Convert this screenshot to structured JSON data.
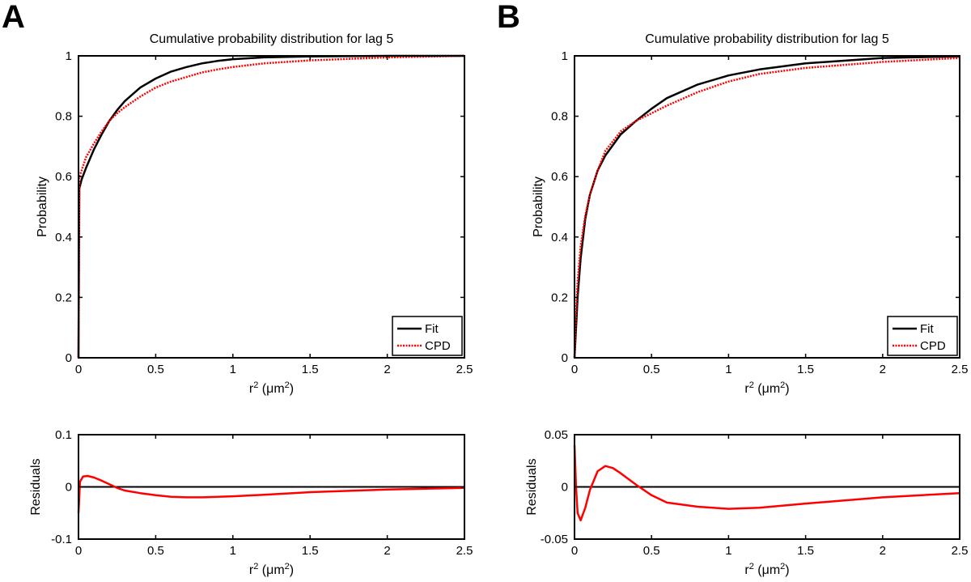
{
  "figure": {
    "panels": [
      {
        "letter": "A"
      },
      {
        "letter": "B"
      }
    ]
  },
  "colors": {
    "fit": "#000000",
    "cpd": "#ff0000",
    "axis": "#000000",
    "residual": "#ff0000"
  },
  "chart_data": [
    {
      "id": "A-cpd",
      "type": "line",
      "title": "Cumulative probability distribution for lag 5",
      "xlabel": "r^2 (μm^2)",
      "xlabel_parts": {
        "base": "r",
        "sup1": "2",
        "mid": " (μm",
        "sup2": "2",
        "end": ")"
      },
      "ylabel": "Probability",
      "xlim": [
        0,
        2.5
      ],
      "ylim": [
        0,
        1
      ],
      "xticks": [
        0,
        0.5,
        1,
        1.5,
        2,
        2.5
      ],
      "xtick_labels": [
        "0",
        "0.5",
        "1",
        "1.5",
        "2",
        "2.5"
      ],
      "yticks": [
        0,
        0.2,
        0.4,
        0.6,
        0.8,
        1
      ],
      "ytick_labels": [
        "0",
        "0.2",
        "0.4",
        "0.6",
        "0.8",
        "1"
      ],
      "legend": {
        "position": "bottom-right",
        "entries": [
          "Fit",
          "CPD"
        ]
      },
      "series": [
        {
          "name": "Fit",
          "style": "solid",
          "x": [
            0,
            0.005,
            0.02,
            0.05,
            0.1,
            0.15,
            0.2,
            0.25,
            0.3,
            0.4,
            0.5,
            0.6,
            0.7,
            0.8,
            0.9,
            1.0,
            1.2,
            1.5,
            2.0,
            2.5
          ],
          "y": [
            0,
            0.56,
            0.59,
            0.63,
            0.69,
            0.74,
            0.785,
            0.82,
            0.85,
            0.895,
            0.925,
            0.948,
            0.963,
            0.975,
            0.983,
            0.989,
            0.995,
            0.998,
            1.0,
            1.0
          ]
        },
        {
          "name": "CPD",
          "style": "dotted",
          "x": [
            0,
            0.005,
            0.02,
            0.05,
            0.1,
            0.15,
            0.2,
            0.25,
            0.3,
            0.4,
            0.5,
            0.6,
            0.7,
            0.8,
            0.9,
            1.0,
            1.2,
            1.5,
            2.0,
            2.5
          ],
          "y": [
            0,
            0.6,
            0.62,
            0.665,
            0.71,
            0.75,
            0.785,
            0.81,
            0.83,
            0.865,
            0.895,
            0.915,
            0.93,
            0.945,
            0.955,
            0.963,
            0.975,
            0.985,
            0.995,
            1.0
          ]
        }
      ]
    },
    {
      "id": "A-res",
      "type": "line",
      "title": "",
      "xlabel": "r^2 (μm^2)",
      "xlabel_parts": {
        "base": "r",
        "sup1": "2",
        "mid": " (μm",
        "sup2": "2",
        "end": ")"
      },
      "ylabel": "Residuals",
      "xlim": [
        0,
        2.5
      ],
      "ylim": [
        -0.1,
        0.1
      ],
      "xticks": [
        0,
        0.5,
        1,
        1.5,
        2,
        2.5
      ],
      "xtick_labels": [
        "0",
        "0.5",
        "1",
        "1.5",
        "2",
        "2.5"
      ],
      "yticks": [
        -0.1,
        0,
        0.1
      ],
      "ytick_labels": [
        "-0.1",
        "0",
        "0.1"
      ],
      "zero_line": true,
      "series": [
        {
          "name": "Residuals",
          "style": "solid",
          "x": [
            0,
            0.01,
            0.03,
            0.06,
            0.1,
            0.15,
            0.2,
            0.25,
            0.3,
            0.4,
            0.5,
            0.6,
            0.7,
            0.8,
            1.0,
            1.2,
            1.5,
            2.0,
            2.5
          ],
          "y": [
            -0.05,
            0.01,
            0.02,
            0.021,
            0.018,
            0.012,
            0.005,
            -0.002,
            -0.007,
            -0.012,
            -0.016,
            -0.019,
            -0.02,
            -0.02,
            -0.018,
            -0.015,
            -0.01,
            -0.005,
            -0.002
          ]
        }
      ]
    },
    {
      "id": "B-cpd",
      "type": "line",
      "title": "Cumulative probability distribution for lag 5",
      "xlabel": "r^2 (μm^2)",
      "xlabel_parts": {
        "base": "r",
        "sup1": "2",
        "mid": " (μm",
        "sup2": "2",
        "end": ")"
      },
      "ylabel": "Probability",
      "xlim": [
        0,
        2.5
      ],
      "ylim": [
        0,
        1
      ],
      "xticks": [
        0,
        0.5,
        1,
        1.5,
        2,
        2.5
      ],
      "xtick_labels": [
        "0",
        "0.5",
        "1",
        "1.5",
        "2",
        "2.5"
      ],
      "yticks": [
        0,
        0.2,
        0.4,
        0.6,
        0.8,
        1
      ],
      "ytick_labels": [
        "0",
        "0.2",
        "0.4",
        "0.6",
        "0.8",
        "1"
      ],
      "legend": {
        "position": "bottom-right",
        "entries": [
          "Fit",
          "CPD"
        ]
      },
      "series": [
        {
          "name": "Fit",
          "style": "solid",
          "x": [
            0,
            0.01,
            0.02,
            0.04,
            0.07,
            0.1,
            0.15,
            0.2,
            0.3,
            0.4,
            0.5,
            0.6,
            0.8,
            1.0,
            1.2,
            1.5,
            2.0,
            2.5
          ],
          "y": [
            0,
            0.1,
            0.2,
            0.33,
            0.46,
            0.54,
            0.62,
            0.67,
            0.74,
            0.785,
            0.825,
            0.86,
            0.905,
            0.935,
            0.955,
            0.975,
            0.993,
            0.998
          ]
        },
        {
          "name": "CPD",
          "style": "dotted",
          "x": [
            0,
            0.01,
            0.02,
            0.04,
            0.07,
            0.1,
            0.15,
            0.2,
            0.3,
            0.4,
            0.5,
            0.6,
            0.8,
            1.0,
            1.2,
            1.5,
            2.0,
            2.5
          ],
          "y": [
            0,
            0.15,
            0.25,
            0.37,
            0.47,
            0.54,
            0.62,
            0.685,
            0.75,
            0.785,
            0.81,
            0.835,
            0.88,
            0.915,
            0.94,
            0.96,
            0.98,
            0.993
          ]
        }
      ]
    },
    {
      "id": "B-res",
      "type": "line",
      "title": "",
      "xlabel": "r^2 (μm^2)",
      "xlabel_parts": {
        "base": "r",
        "sup1": "2",
        "mid": " (μm",
        "sup2": "2",
        "end": ")"
      },
      "ylabel": "Residuals",
      "xlim": [
        0,
        2.5
      ],
      "ylim": [
        -0.05,
        0.05
      ],
      "xticks": [
        0,
        0.5,
        1,
        1.5,
        2,
        2.5
      ],
      "xtick_labels": [
        "0",
        "0.5",
        "1",
        "1.5",
        "2",
        "2.5"
      ],
      "yticks": [
        -0.05,
        0,
        0.05
      ],
      "ytick_labels": [
        "-0.05",
        "0",
        "0.05"
      ],
      "zero_line": true,
      "series": [
        {
          "name": "Residuals",
          "style": "solid",
          "x": [
            0,
            0.01,
            0.02,
            0.04,
            0.07,
            0.1,
            0.15,
            0.2,
            0.25,
            0.3,
            0.4,
            0.5,
            0.6,
            0.8,
            1.0,
            1.2,
            1.5,
            2.0,
            2.5
          ],
          "y": [
            0.04,
            0.0,
            -0.025,
            -0.032,
            -0.02,
            -0.003,
            0.015,
            0.02,
            0.018,
            0.013,
            0.002,
            -0.008,
            -0.015,
            -0.019,
            -0.021,
            -0.02,
            -0.016,
            -0.01,
            -0.006
          ]
        }
      ]
    }
  ]
}
